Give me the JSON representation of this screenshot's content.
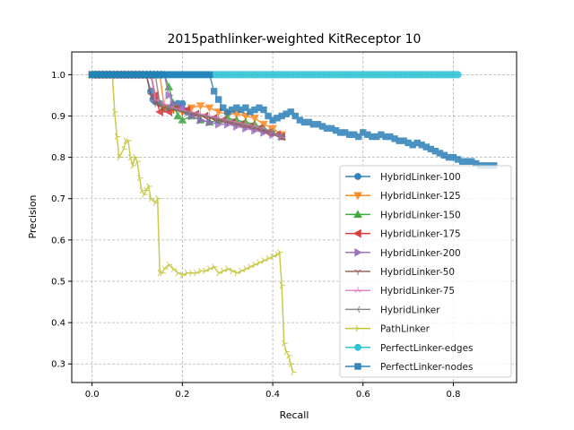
{
  "chart_data": {
    "type": "line",
    "title": "2015pathlinker-weighted KitReceptor 10",
    "xlabel": "Recall",
    "ylabel": "Precision",
    "xlim": [
      -0.045,
      0.94
    ],
    "ylim": [
      0.255,
      1.055
    ],
    "xticks": [
      0.0,
      0.2,
      0.4,
      0.6,
      0.8
    ],
    "yticks": [
      0.3,
      0.4,
      0.5,
      0.6,
      0.7,
      0.8,
      0.9,
      1.0
    ],
    "xtick_labels": [
      "0.0",
      "0.2",
      "0.4",
      "0.6",
      "0.8"
    ],
    "ytick_labels": [
      "0.3",
      "0.4",
      "0.5",
      "0.6",
      "0.7",
      "0.8",
      "0.9",
      "1.0"
    ],
    "grid": true,
    "legend_position": "lower right",
    "series": [
      {
        "name": "HybridLinker-100",
        "color": "#1f77b4",
        "marker": "circle",
        "x": [
          0.0,
          0.12,
          0.13,
          0.135,
          0.14,
          0.15,
          0.16,
          0.17,
          0.18,
          0.19,
          0.2,
          0.21
        ],
        "y": [
          1.0,
          1.0,
          0.96,
          0.94,
          0.935,
          0.93,
          0.92,
          0.92,
          0.925,
          0.93,
          0.93,
          0.91
        ]
      },
      {
        "name": "HybridLinker-125",
        "color": "#ff7f0e",
        "marker": "triangle-down",
        "x": [
          0.0,
          0.15,
          0.16,
          0.18,
          0.2,
          0.22,
          0.24,
          0.26,
          0.28,
          0.3,
          0.32,
          0.34,
          0.36,
          0.38,
          0.4,
          0.42
        ],
        "y": [
          1.0,
          1.0,
          0.92,
          0.915,
          0.91,
          0.92,
          0.925,
          0.92,
          0.91,
          0.905,
          0.905,
          0.9,
          0.895,
          0.88,
          0.87,
          0.855
        ]
      },
      {
        "name": "HybridLinker-150",
        "color": "#2ca02c",
        "marker": "triangle-up",
        "x": [
          0.0,
          0.16,
          0.17,
          0.18,
          0.19,
          0.2,
          0.22,
          0.24,
          0.26,
          0.28,
          0.3,
          0.32,
          0.34,
          0.36,
          0.38,
          0.4,
          0.42
        ],
        "y": [
          1.0,
          1.0,
          0.97,
          0.93,
          0.9,
          0.89,
          0.9,
          0.89,
          0.885,
          0.89,
          0.895,
          0.89,
          0.885,
          0.88,
          0.87,
          0.86,
          0.85
        ]
      },
      {
        "name": "HybridLinker-175",
        "color": "#d62728",
        "marker": "triangle-left",
        "x": [
          0.0,
          0.13,
          0.14,
          0.15,
          0.17,
          0.19,
          0.21,
          0.23,
          0.25,
          0.27,
          0.29,
          0.31,
          0.33,
          0.35,
          0.37,
          0.39,
          0.41,
          0.42
        ],
        "y": [
          1.0,
          1.0,
          0.95,
          0.91,
          0.91,
          0.92,
          0.915,
          0.905,
          0.9,
          0.895,
          0.89,
          0.885,
          0.88,
          0.875,
          0.87,
          0.86,
          0.855,
          0.85
        ]
      },
      {
        "name": "HybridLinker-200",
        "color": "#9467bd",
        "marker": "triangle-right",
        "x": [
          0.0,
          0.16,
          0.17,
          0.18,
          0.2,
          0.22,
          0.24,
          0.26,
          0.28,
          0.3,
          0.32,
          0.34,
          0.36,
          0.38,
          0.4,
          0.42
        ],
        "y": [
          1.0,
          1.0,
          0.95,
          0.93,
          0.92,
          0.9,
          0.89,
          0.885,
          0.88,
          0.88,
          0.875,
          0.87,
          0.865,
          0.86,
          0.855,
          0.85
        ]
      },
      {
        "name": "HybridLinker-50",
        "color": "#8c564b",
        "marker": "tri-down",
        "x": [
          0.0,
          0.12,
          0.13,
          0.14,
          0.16,
          0.18,
          0.2,
          0.22,
          0.24,
          0.26,
          0.28,
          0.3,
          0.32,
          0.34,
          0.36,
          0.38,
          0.4,
          0.42
        ],
        "y": [
          1.0,
          1.0,
          0.95,
          0.93,
          0.92,
          0.915,
          0.91,
          0.905,
          0.9,
          0.895,
          0.89,
          0.885,
          0.88,
          0.875,
          0.87,
          0.865,
          0.86,
          0.85
        ]
      },
      {
        "name": "HybridLinker-75",
        "color": "#e377c2",
        "marker": "tri-up",
        "x": [
          0.0,
          0.13,
          0.14,
          0.16,
          0.18,
          0.2,
          0.22,
          0.24,
          0.26,
          0.28,
          0.3,
          0.32,
          0.34,
          0.36,
          0.38,
          0.4,
          0.42
        ],
        "y": [
          1.0,
          1.0,
          0.94,
          0.93,
          0.92,
          0.915,
          0.91,
          0.905,
          0.9,
          0.895,
          0.89,
          0.885,
          0.88,
          0.875,
          0.87,
          0.86,
          0.85
        ]
      },
      {
        "name": "HybridLinker",
        "color": "#7f7f7f",
        "marker": "tri-left",
        "x": [
          0.0,
          0.14,
          0.15,
          0.17,
          0.19,
          0.21,
          0.23,
          0.25,
          0.27,
          0.29,
          0.31,
          0.33,
          0.35,
          0.37,
          0.39,
          0.41,
          0.42
        ],
        "y": [
          1.0,
          1.0,
          0.93,
          0.92,
          0.915,
          0.91,
          0.905,
          0.9,
          0.895,
          0.89,
          0.885,
          0.88,
          0.875,
          0.87,
          0.865,
          0.855,
          0.85
        ]
      },
      {
        "name": "PathLinker",
        "color": "#bcbd22",
        "marker": "tri-right",
        "x": [
          0.0,
          0.045,
          0.05,
          0.055,
          0.06,
          0.07,
          0.075,
          0.08,
          0.085,
          0.09,
          0.095,
          0.1,
          0.105,
          0.11,
          0.115,
          0.12,
          0.125,
          0.13,
          0.14,
          0.145,
          0.15,
          0.155,
          0.16,
          0.17,
          0.18,
          0.19,
          0.2,
          0.21,
          0.22,
          0.23,
          0.24,
          0.25,
          0.26,
          0.27,
          0.28,
          0.29,
          0.3,
          0.31,
          0.32,
          0.33,
          0.34,
          0.35,
          0.36,
          0.37,
          0.38,
          0.39,
          0.4,
          0.41,
          0.415,
          0.42,
          0.425,
          0.43,
          0.435,
          0.44,
          0.445
        ],
        "y": [
          1.0,
          1.0,
          0.91,
          0.85,
          0.8,
          0.82,
          0.84,
          0.84,
          0.8,
          0.78,
          0.8,
          0.79,
          0.75,
          0.72,
          0.71,
          0.72,
          0.73,
          0.7,
          0.69,
          0.7,
          0.52,
          0.52,
          0.53,
          0.54,
          0.53,
          0.52,
          0.515,
          0.52,
          0.52,
          0.52,
          0.525,
          0.525,
          0.53,
          0.535,
          0.52,
          0.525,
          0.53,
          0.525,
          0.52,
          0.525,
          0.53,
          0.535,
          0.54,
          0.545,
          0.55,
          0.555,
          0.56,
          0.565,
          0.57,
          0.49,
          0.35,
          0.33,
          0.32,
          0.3,
          0.28
        ]
      },
      {
        "name": "PerfectLinker-edges",
        "color": "#17becf",
        "marker": "circle",
        "x": [
          0.0,
          0.81
        ],
        "y": [
          1.0,
          1.0
        ],
        "dense": true
      },
      {
        "name": "PerfectLinker-nodes",
        "color": "#1f77b4",
        "marker": "square",
        "x": [
          0.0,
          0.26,
          0.27,
          0.28,
          0.29,
          0.3,
          0.31,
          0.32,
          0.33,
          0.34,
          0.35,
          0.36,
          0.37,
          0.38,
          0.39,
          0.4,
          0.41,
          0.42,
          0.43,
          0.44,
          0.45,
          0.46,
          0.47,
          0.48,
          0.49,
          0.5,
          0.51,
          0.52,
          0.53,
          0.54,
          0.55,
          0.56,
          0.57,
          0.58,
          0.59,
          0.6,
          0.61,
          0.62,
          0.63,
          0.64,
          0.65,
          0.66,
          0.67,
          0.68,
          0.69,
          0.7,
          0.71,
          0.72,
          0.73,
          0.74,
          0.75,
          0.76,
          0.77,
          0.78,
          0.79,
          0.8,
          0.81,
          0.82,
          0.83,
          0.84,
          0.85,
          0.86,
          0.87,
          0.88,
          0.89
        ],
        "y": [
          1.0,
          1.0,
          0.96,
          0.94,
          0.92,
          0.91,
          0.915,
          0.92,
          0.915,
          0.92,
          0.91,
          0.915,
          0.92,
          0.915,
          0.9,
          0.89,
          0.895,
          0.9,
          0.905,
          0.91,
          0.9,
          0.89,
          0.885,
          0.885,
          0.88,
          0.88,
          0.875,
          0.87,
          0.87,
          0.865,
          0.86,
          0.86,
          0.855,
          0.855,
          0.85,
          0.86,
          0.855,
          0.85,
          0.85,
          0.855,
          0.85,
          0.85,
          0.845,
          0.84,
          0.84,
          0.835,
          0.83,
          0.835,
          0.83,
          0.825,
          0.82,
          0.815,
          0.81,
          0.805,
          0.8,
          0.8,
          0.795,
          0.79,
          0.79,
          0.79,
          0.785,
          0.78,
          0.78,
          0.78,
          0.78
        ]
      }
    ]
  }
}
